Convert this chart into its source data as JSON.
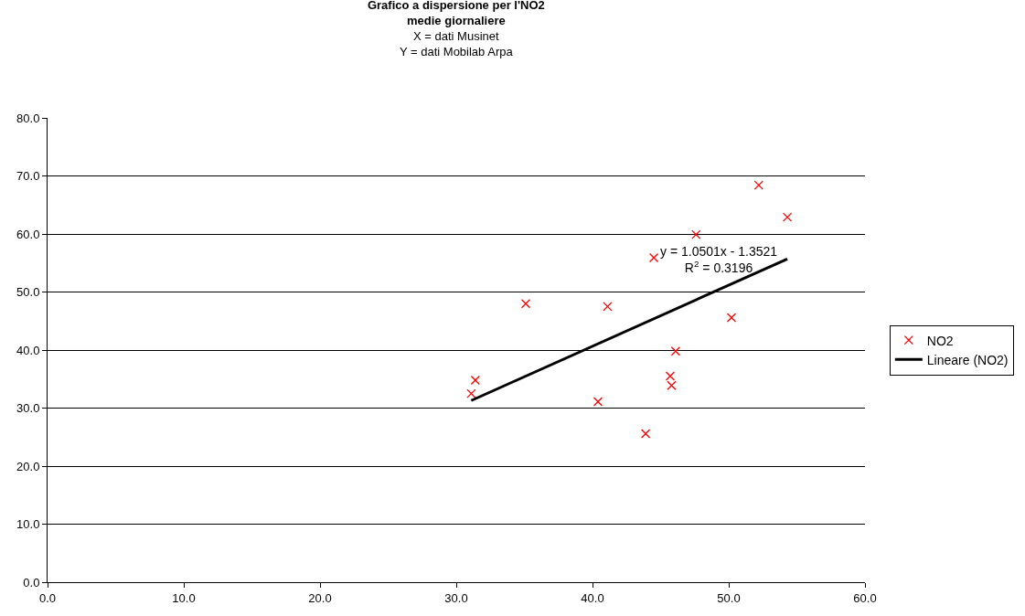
{
  "chart_data": {
    "type": "scatter",
    "title": "Grafico a dispersione per l'NO2\nmedie giornaliere",
    "subtitle": "X = dati Musinet\nY = dati Mobilab Arpa",
    "annotations": [
      "y = 1.0501x - 1.3521\nR$^{2}$ = 0.3196"
    ],
    "series": [
      {
        "name": "NO2",
        "color": "#ff0000",
        "marker": "cross",
        "x": [
          31.1,
          31.4,
          35.1,
          41.1,
          40.4,
          43.9,
          44.5,
          45.7,
          45.8,
          46.1,
          47.6,
          50.2,
          52.2,
          54.3
        ],
        "values": [
          32.5,
          34.8,
          48.0,
          47.5,
          31.1,
          25.6,
          55.9,
          35.5,
          33.9,
          39.8,
          59.9,
          45.6,
          68.4,
          62.9
        ]
      },
      {
        "name": "Lineare (NO2)",
        "type": "line",
        "color": "#000000",
        "x": [
          31.1,
          54.3
        ],
        "values": [
          31.3,
          55.7
        ]
      }
    ],
    "xlim": [
      0,
      60
    ],
    "ylim": [
      0,
      80
    ],
    "xticks": [
      {
        "value": 0,
        "label": "0.0"
      },
      {
        "value": 10,
        "label": "10.0"
      },
      {
        "value": 20,
        "label": "20.0"
      },
      {
        "value": 30,
        "label": "30.0"
      },
      {
        "value": 40,
        "label": "40.0"
      },
      {
        "value": 50,
        "label": "50.0"
      },
      {
        "value": 60,
        "label": "60.0"
      }
    ],
    "yticks": [
      {
        "value": 0,
        "label": "0.0"
      },
      {
        "value": 10,
        "label": "10.0"
      },
      {
        "value": 20,
        "label": "20.0"
      },
      {
        "value": 30,
        "label": "30.0"
      },
      {
        "value": 40,
        "label": "40.0"
      },
      {
        "value": 50,
        "label": "50.0"
      },
      {
        "value": 60,
        "label": "60.0"
      },
      {
        "value": 70,
        "label": "70.0"
      },
      {
        "value": 80,
        "label": "80.0"
      }
    ],
    "grid": "y",
    "legend": "right"
  }
}
